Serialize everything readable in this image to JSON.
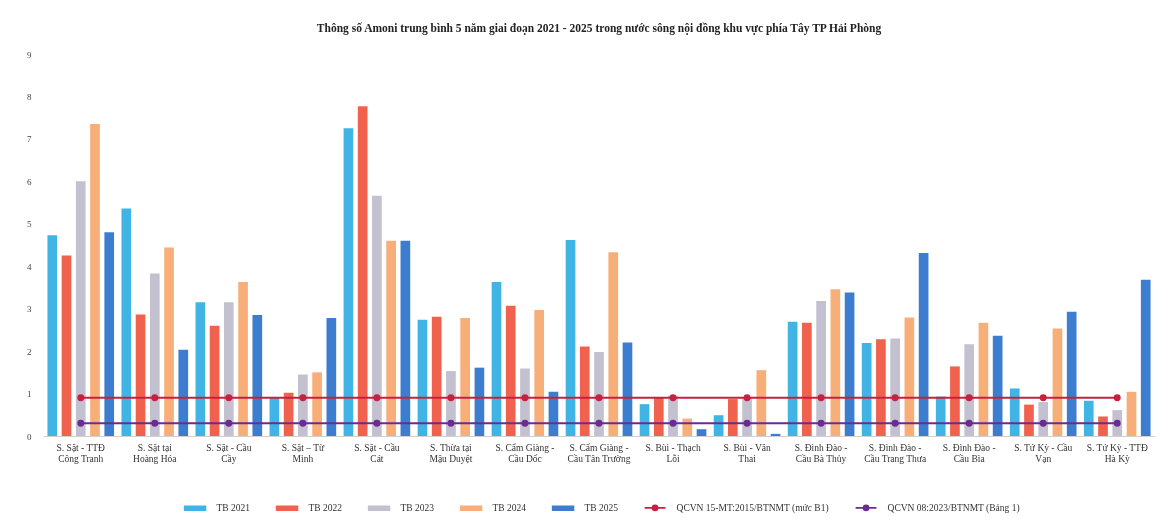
{
  "chart_data": {
    "type": "bar",
    "title": "Thông số Amoni trung bình 5 năm giai đoạn 2021 - 2025 trong nước sông nội đồng khu vực phía Tây TP Hải Phòng",
    "categories": [
      "S. Sặt - TTĐ Công Tranh",
      "S. Sặt tại Hoàng Hóa",
      "S. Sặt - Cầu Cầy",
      "S. Sặt – Từ Minh",
      "S. Sặt - Cầu Cát",
      "S. Thừa tại Mậu Duyệt",
      "S. Cẩm Giàng - Cầu Dốc",
      "S. Cẩm Giàng - Cầu Tân Trường",
      "S. Bùi - Thạch Lỗi",
      "S. Bùi - Văn Thai",
      "S. Đình Đào - Cầu Bà Thủy",
      "S. Đình Đào - Cầu Trang Thưa",
      "S. Đình Đào - Cầu Bìa",
      "S. Tứ Kỳ - Cầu Vạn",
      "S. Tứ Kỳ - TTĐ Hà Kỳ"
    ],
    "series": [
      {
        "name": "TB 2021",
        "color": "#41b4e6",
        "values": [
          4.73,
          5.36,
          3.15,
          0.9,
          7.25,
          2.74,
          3.63,
          4.62,
          0.75,
          0.49,
          2.69,
          2.19,
          0.93,
          1.12,
          0.83
        ]
      },
      {
        "name": "TB 2022",
        "color": "#f0624d",
        "values": [
          4.25,
          2.86,
          2.6,
          1.02,
          7.77,
          2.81,
          3.07,
          2.11,
          0.9,
          0.87,
          2.67,
          2.28,
          1.64,
          0.74,
          0.46
        ]
      },
      {
        "name": "TB 2023",
        "color": "#c3c0cf",
        "values": [
          6.0,
          3.83,
          3.15,
          1.45,
          5.66,
          1.53,
          1.59,
          1.98,
          0.95,
          0.9,
          3.18,
          2.3,
          2.16,
          0.8,
          0.61
        ]
      },
      {
        "name": "TB 2024",
        "color": "#f8ae78",
        "values": [
          7.35,
          4.44,
          3.63,
          1.5,
          4.6,
          2.78,
          2.97,
          4.33,
          0.41,
          1.55,
          3.46,
          2.79,
          2.67,
          2.53,
          1.04
        ]
      },
      {
        "name": "TB 2025",
        "color": "#3c7dd0",
        "values": [
          4.8,
          2.03,
          2.85,
          2.78,
          4.6,
          1.61,
          1.04,
          2.2,
          0.16,
          0.05,
          3.38,
          4.31,
          2.36,
          2.93,
          3.68
        ]
      },
      {
        "name": "QCVN 15-MT:2015/BTNMT (mức B1)",
        "type": "line",
        "color": "#c8203f",
        "values": [
          0.9,
          0.9,
          0.9,
          0.9,
          0.9,
          0.9,
          0.9,
          0.9,
          0.9,
          0.9,
          0.9,
          0.9,
          0.9,
          0.9,
          0.9
        ]
      },
      {
        "name": "QCVN 08:2023/BTNMT (Bảng 1)",
        "type": "line",
        "color": "#6a2d8f",
        "values": [
          0.3,
          0.3,
          0.3,
          0.3,
          0.3,
          0.3,
          0.3,
          0.3,
          0.3,
          0.3,
          0.3,
          0.3,
          0.3,
          0.3,
          0.3
        ]
      }
    ],
    "ylim": [
      0,
      9
    ],
    "yticks": [
      0,
      1,
      2,
      3,
      4,
      5,
      6,
      7,
      8,
      9
    ],
    "grid": false,
    "legend": "bottom",
    "marker": "circle",
    "line_style": "solid"
  }
}
